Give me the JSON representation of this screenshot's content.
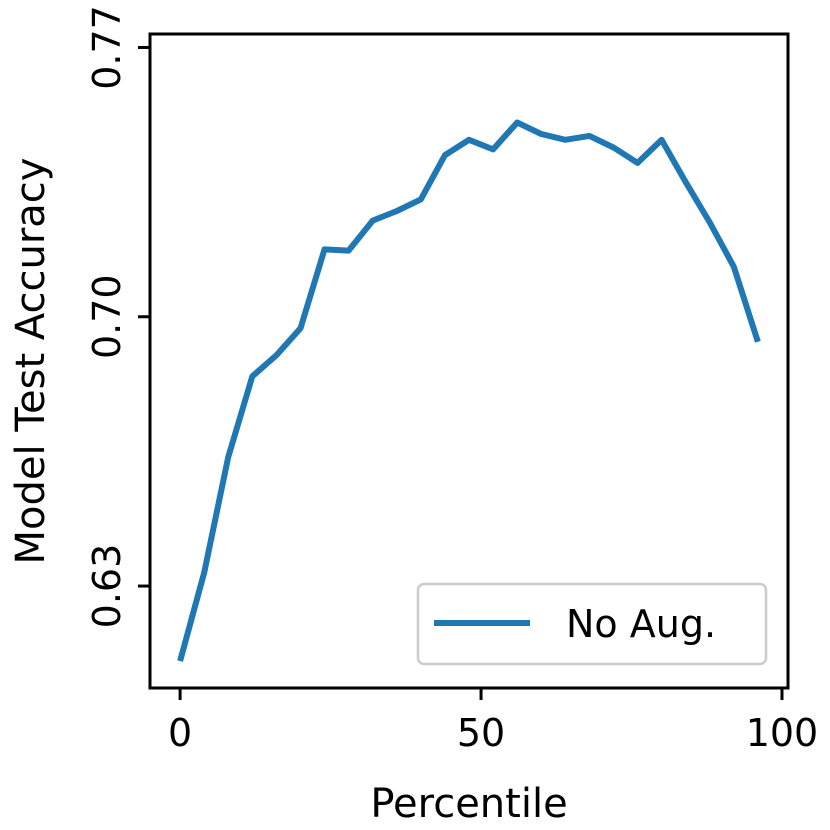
{
  "chart_data": {
    "type": "line",
    "xlabel": "Percentile",
    "ylabel": "Model Test Accuracy",
    "xlim": [
      -5,
      101
    ],
    "ylim": [
      0.6035,
      0.7735
    ],
    "xticks": [
      0,
      50,
      100
    ],
    "xtick_labels": [
      "0",
      "50",
      "100"
    ],
    "yticks": [
      0.63,
      0.7,
      0.77
    ],
    "ytick_labels": [
      "0.63",
      "0.70",
      "0.77"
    ],
    "grid": false,
    "legend_position": "bottom-right",
    "series": [
      {
        "name": "No Aug.",
        "color": "#1f77b4",
        "x": [
          0,
          4,
          8,
          12,
          16,
          20,
          24,
          28,
          32,
          36,
          40,
          44,
          48,
          52,
          56,
          60,
          64,
          68,
          72,
          76,
          80,
          84,
          88,
          92,
          96
        ],
        "y": [
          0.6105,
          0.6335,
          0.6635,
          0.6845,
          0.69,
          0.697,
          0.7175,
          0.7172,
          0.725,
          0.7275,
          0.7305,
          0.742,
          0.746,
          0.7435,
          0.7505,
          0.7475,
          0.746,
          0.747,
          0.744,
          0.74,
          0.746,
          0.735,
          0.7245,
          0.713,
          0.6935
        ]
      }
    ]
  }
}
